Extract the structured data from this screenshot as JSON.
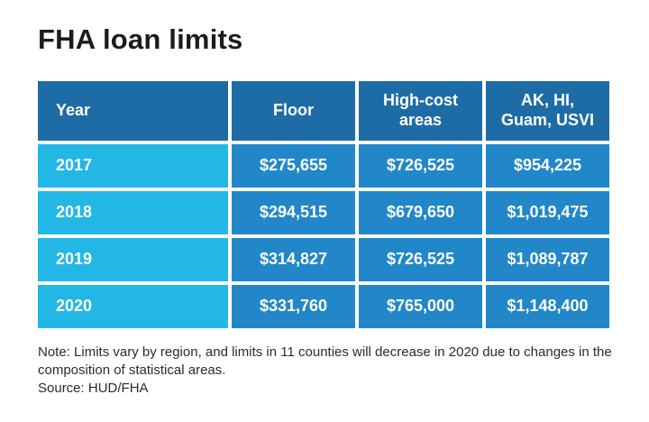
{
  "title": "FHA loan limits",
  "colors": {
    "header_bg": "#1e6ca6",
    "year_cell_bg": "#23b7e6",
    "value_cell_bg": "#2187c9",
    "table_text": "#ffffff",
    "title_text": "#1c1c1e",
    "note_text": "#2b2b2b",
    "background": "#ffffff"
  },
  "table": {
    "headers": [
      "Year",
      "Floor",
      "High-cost\nareas",
      "AK, HI,\nGuam, USVI"
    ],
    "rows": [
      {
        "year": "2017",
        "values": [
          "$275,655",
          "$726,525",
          "$954,225"
        ]
      },
      {
        "year": "2018",
        "values": [
          "$294,515",
          "$679,650",
          "$1,019,475"
        ]
      },
      {
        "year": "2019",
        "values": [
          "$314,827",
          "$726,525",
          "$1,089,787"
        ]
      },
      {
        "year": "2020",
        "values": [
          "$331,760",
          "$765,000",
          "$1,148,400"
        ]
      }
    ]
  },
  "note": "Note: Limits vary by region, and limits in 11 counties will decrease in 2020 due to changes in the composition of statistical areas.",
  "source": "Source: HUD/FHA",
  "chart_data": {
    "type": "table",
    "title": "FHA loan limits",
    "columns": [
      "Year",
      "Floor",
      "High-cost areas",
      "AK, HI, Guam, USVI"
    ],
    "rows": [
      [
        "2017",
        275655,
        726525,
        954225
      ],
      [
        "2018",
        294515,
        679650,
        1019475
      ],
      [
        "2019",
        314827,
        726525,
        1089787
      ],
      [
        "2020",
        331760,
        765000,
        1148400
      ]
    ],
    "units": "USD",
    "note": "Note: Limits vary by region, and limits in 11 counties will decrease in 2020 due to changes in the composition of statistical areas.",
    "source": "HUD/FHA"
  }
}
